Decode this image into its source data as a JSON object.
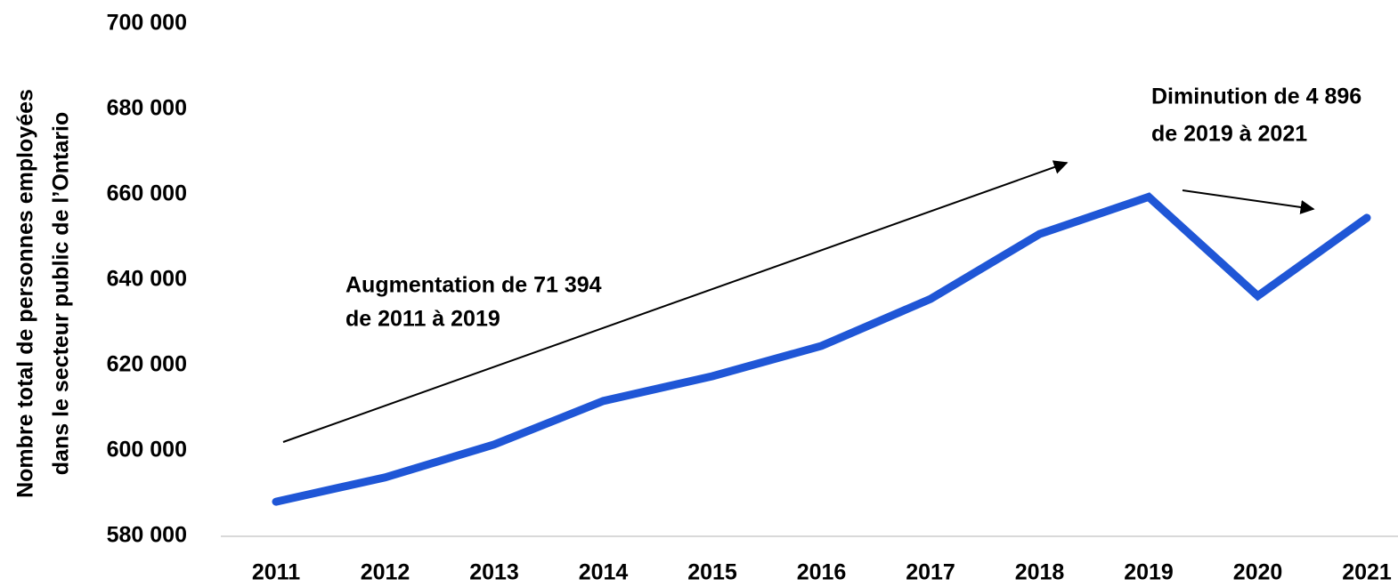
{
  "chart_data": {
    "type": "line",
    "ylabel": [
      "Nombre total de personnes employées",
      "dans le secteur public de l’Ontario"
    ],
    "categories": [
      "2011",
      "2012",
      "2013",
      "2014",
      "2015",
      "2016",
      "2017",
      "2018",
      "2019",
      "2020",
      "2021"
    ],
    "values": [
      588100,
      593800,
      601500,
      611700,
      617500,
      624600,
      635600,
      650800,
      659500,
      636300,
      654600
    ],
    "color": "#1f56d6",
    "ylim": [
      580000,
      700000
    ],
    "yticks": [
      {
        "value": 580000,
        "label": "580 000"
      },
      {
        "value": 600000,
        "label": "600 000"
      },
      {
        "value": 620000,
        "label": "620 000"
      },
      {
        "value": 640000,
        "label": "640 000"
      },
      {
        "value": 660000,
        "label": "660 000"
      },
      {
        "value": 680000,
        "label": "680 000"
      },
      {
        "value": 700000,
        "label": "700 000"
      }
    ],
    "annotations": [
      {
        "lines": [
          "Augmentation de 71 394",
          "de 2011 à 2019"
        ]
      },
      {
        "lines": [
          "Diminution de 4 896",
          "de 2019 à 2021"
        ]
      }
    ]
  }
}
